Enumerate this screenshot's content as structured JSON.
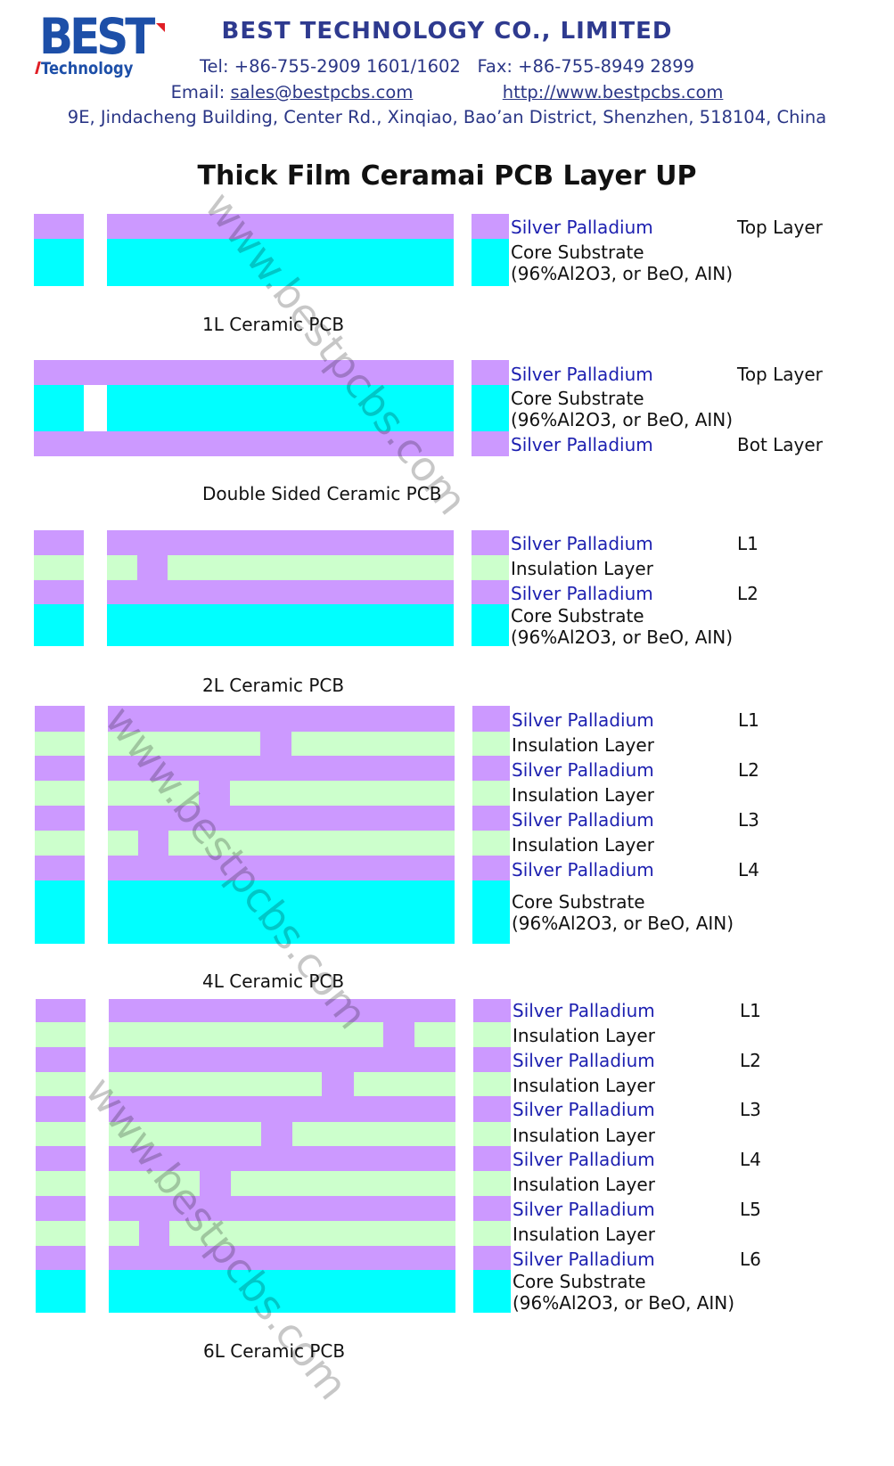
{
  "header": {
    "logo_text": "BEST",
    "logo_subtext": "Technology",
    "company": "BEST TECHNOLOGY CO., LIMITED",
    "tel": "Tel: +86-755-2909 1601/1602",
    "fax": "Fax: +86-755-8949 2899",
    "email_label": "Email: ",
    "email": "sales@bestpcbs.com",
    "website": "http://www.bestpcbs.com",
    "address": "9E, Jindacheng Building, Center Rd., Xinqiao, Bao’an District, Shenzhen, 518104, China"
  },
  "title": "Thick Film Ceramai PCB Layer UP",
  "watermark": "www.bestpcbs.com",
  "colors": {
    "silver_palladium": "#cc99ff",
    "core_substrate": "#00ffff",
    "insulation": "#ccffcc",
    "label_blue": "#1c1fb0"
  },
  "stackups": [
    {
      "caption": "1L Ceramic PCB",
      "labels": [
        {
          "text": "Silver Palladium",
          "tag": "Top Layer",
          "kind": "pd"
        },
        {
          "text": "Core Substrate",
          "tag": "",
          "kind": "core"
        },
        {
          "text": "(96%Al2O3, or BeO, AIN)",
          "tag": "",
          "kind": "core"
        }
      ]
    },
    {
      "caption": "Double Sided Ceramic PCB",
      "labels": [
        {
          "text": "Silver Palladium",
          "tag": "Top Layer",
          "kind": "pd"
        },
        {
          "text": "Core Substrate",
          "tag": "",
          "kind": "core"
        },
        {
          "text": "(96%Al2O3, or BeO, AIN)",
          "tag": "",
          "kind": "core"
        },
        {
          "text": "Silver Palladium",
          "tag": "Bot Layer",
          "kind": "pd"
        }
      ]
    },
    {
      "caption": "2L Ceramic PCB",
      "labels": [
        {
          "text": "Silver Palladium",
          "tag": "L1",
          "kind": "pd"
        },
        {
          "text": "Insulation Layer",
          "tag": "",
          "kind": "ins"
        },
        {
          "text": "Silver Palladium",
          "tag": "L2",
          "kind": "pd"
        },
        {
          "text": "Core Substrate",
          "tag": "",
          "kind": "core"
        },
        {
          "text": "(96%Al2O3, or BeO, AIN)",
          "tag": "",
          "kind": "core"
        }
      ]
    },
    {
      "caption": "4L Ceramic PCB",
      "labels": [
        {
          "text": "Silver Palladium",
          "tag": "L1",
          "kind": "pd"
        },
        {
          "text": "Insulation Layer",
          "tag": "",
          "kind": "ins"
        },
        {
          "text": "Silver Palladium",
          "tag": "L2",
          "kind": "pd"
        },
        {
          "text": "Insulation Layer",
          "tag": "",
          "kind": "ins"
        },
        {
          "text": "Silver Palladium",
          "tag": "L3",
          "kind": "pd"
        },
        {
          "text": "Insulation Layer",
          "tag": "",
          "kind": "ins"
        },
        {
          "text": "Silver Palladium",
          "tag": "L4",
          "kind": "pd"
        },
        {
          "text": "Core Substrate",
          "tag": "",
          "kind": "core"
        },
        {
          "text": "(96%Al2O3, or BeO, AIN)",
          "tag": "",
          "kind": "core"
        }
      ]
    },
    {
      "caption": "6L Ceramic PCB",
      "labels": [
        {
          "text": "Silver Palladium",
          "tag": "L1",
          "kind": "pd"
        },
        {
          "text": "Insulation Layer",
          "tag": "",
          "kind": "ins"
        },
        {
          "text": "Silver Palladium",
          "tag": "L2",
          "kind": "pd"
        },
        {
          "text": "Insulation Layer",
          "tag": "",
          "kind": "ins"
        },
        {
          "text": "Silver Palladium",
          "tag": "L3",
          "kind": "pd"
        },
        {
          "text": "Insulation Layer",
          "tag": "",
          "kind": "ins"
        },
        {
          "text": "Silver Palladium",
          "tag": "L4",
          "kind": "pd"
        },
        {
          "text": "Insulation Layer",
          "tag": "",
          "kind": "ins"
        },
        {
          "text": "Silver Palladium",
          "tag": "L5",
          "kind": "pd"
        },
        {
          "text": "Insulation Layer",
          "tag": "",
          "kind": "ins"
        },
        {
          "text": "Silver Palladium",
          "tag": "L6",
          "kind": "pd"
        },
        {
          "text": "Core Substrate",
          "tag": "",
          "kind": "core"
        },
        {
          "text": "(96%Al2O3, or BeO, AIN)",
          "tag": "",
          "kind": "core"
        }
      ]
    }
  ]
}
